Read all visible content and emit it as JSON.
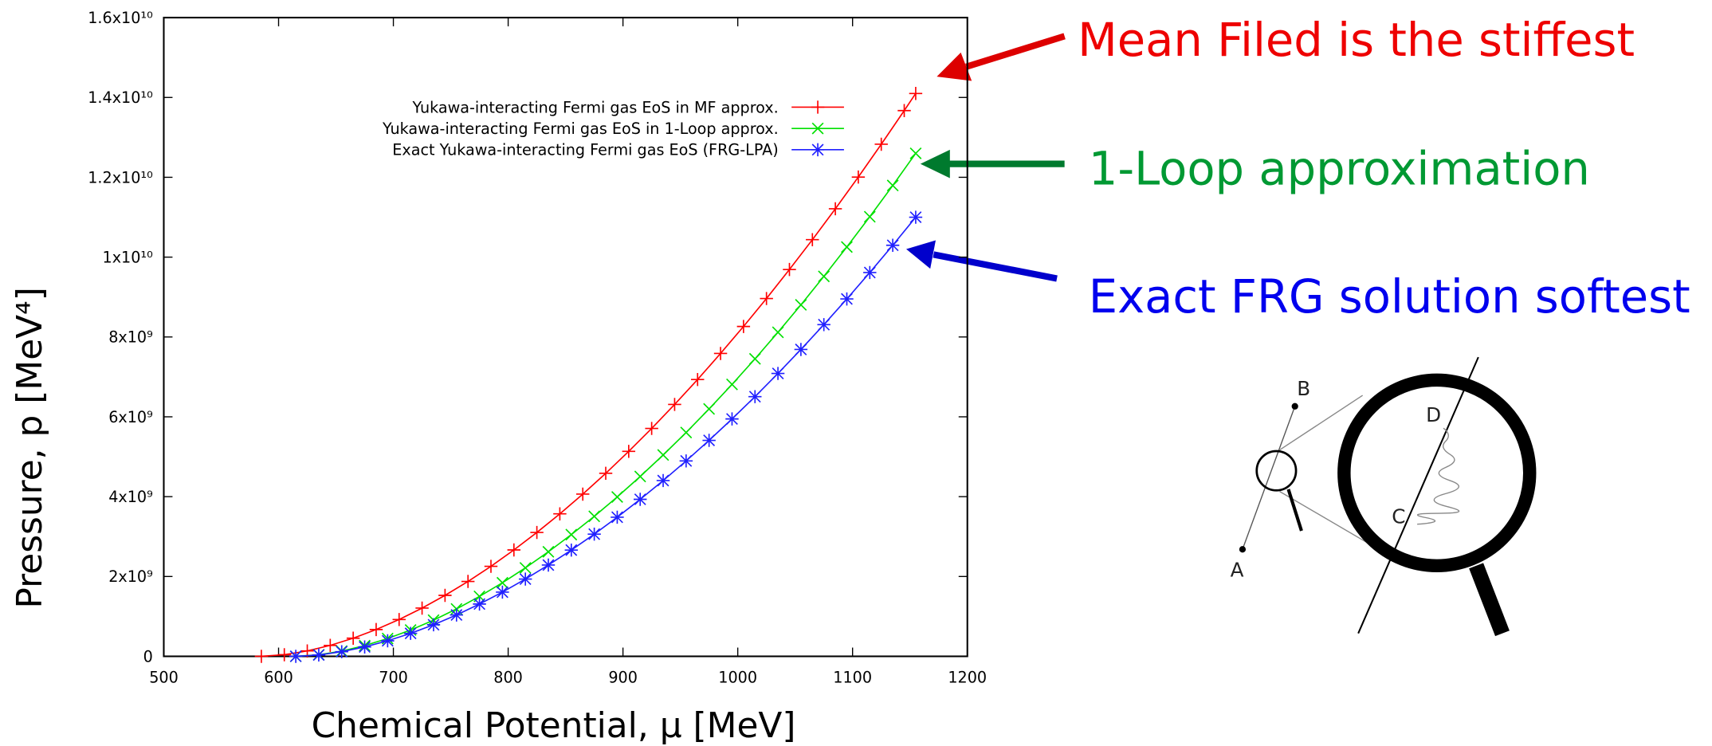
{
  "chart_data": {
    "type": "line",
    "x_label": "Chemical Potential, μ [MeV]",
    "y_label": "Pressure, p [MeV⁴]",
    "xlim": [
      500,
      1200
    ],
    "xticks": [
      500,
      600,
      700,
      800,
      900,
      1000,
      1100,
      1200
    ],
    "ylim": [
      0,
      16000000000.0
    ],
    "yticks": [
      0,
      {
        "value": 2000000000.0,
        "label": "2x10⁹"
      },
      {
        "value": 4000000000.0,
        "label": "4x10⁹"
      },
      {
        "value": 6000000000.0,
        "label": "6x10⁹"
      },
      {
        "value": 8000000000.0,
        "label": "8x10⁹"
      },
      {
        "value": 10000000000.0,
        "label": "1x10¹⁰"
      },
      {
        "value": 12000000000.0,
        "label": "1.2x10¹⁰"
      },
      {
        "value": 14000000000.0,
        "label": "1.4x10¹⁰"
      },
      {
        "value": 16000000000.0,
        "label": "1.6x10¹⁰"
      }
    ],
    "legend": "top-right",
    "series": [
      {
        "name": "Yukawa-interacting Fermi gas EoS in MF approx.",
        "color": "#ff0000",
        "marker": "plus",
        "x": [
          585,
          605,
          625,
          645,
          665,
          685,
          705,
          725,
          745,
          765,
          785,
          805,
          825,
          845,
          865,
          885,
          905,
          925,
          945,
          965,
          985,
          1005,
          1025,
          1045,
          1065,
          1085,
          1105,
          1125,
          1145,
          1155
        ],
        "values": [
          0,
          40000000.0,
          135000000.0,
          274000000.0,
          454000000.0,
          671000000.0,
          922000000.0,
          1208000000.0,
          1527000000.0,
          1876000000.0,
          2254000000.0,
          2665000000.0,
          3103000000.0,
          3569000000.0,
          4063000000.0,
          4585000000.0,
          5134000000.0,
          5709000000.0,
          6310000000.0,
          6934000000.0,
          7587000000.0,
          8263000000.0,
          8963000000.0,
          9690000000.0,
          10437000000.0,
          11211000000.0,
          12006000000.0,
          12828000000.0,
          13671000000.0,
          14100000000.0
        ]
      },
      {
        "name": "Yukawa-interacting Fermi gas EoS in 1-Loop approx.",
        "color": "#00e000",
        "marker": "cross",
        "x": [
          615,
          635,
          655,
          675,
          695,
          715,
          735,
          755,
          775,
          795,
          815,
          835,
          855,
          875,
          895,
          915,
          935,
          955,
          975,
          995,
          1015,
          1035,
          1055,
          1075,
          1095,
          1115,
          1135,
          1155
        ],
        "values": [
          0,
          39000000.0,
          132000000.0,
          269000000.0,
          446000000.0,
          659000000.0,
          906000000.0,
          1187000000.0,
          1501000000.0,
          1842000000.0,
          2216000000.0,
          2618000000.0,
          3049000000.0,
          3507000000.0,
          3992000000.0,
          4505000000.0,
          5044000000.0,
          5607000000.0,
          6197000000.0,
          6812000000.0,
          7452000000.0,
          8117000000.0,
          8805000000.0,
          9518000000.0,
          10254000000.0,
          11012000000.0,
          11795000000.0,
          12600000000.0
        ]
      },
      {
        "name": "Exact Yukawa-interacting Fermi gas EoS (FRG-LPA)",
        "color": "#2020ff",
        "marker": "star",
        "x": [
          615,
          635,
          655,
          675,
          695,
          715,
          735,
          755,
          775,
          795,
          815,
          835,
          855,
          875,
          895,
          915,
          935,
          955,
          975,
          995,
          1015,
          1035,
          1055,
          1075,
          1095,
          1115,
          1135,
          1155
        ],
        "values": [
          0,
          34000000.0,
          116000000.0,
          235000000.0,
          389000000.0,
          575000000.0,
          791000000.0,
          1036000000.0,
          1310000000.0,
          1608000000.0,
          1935000000.0,
          2286000000.0,
          2662000000.0,
          3061000000.0,
          3485000000.0,
          3933000000.0,
          4403000000.0,
          4895000000.0,
          5410000000.0,
          5947000000.0,
          6505000000.0,
          7086000000.0,
          7687000000.0,
          8309000000.0,
          8952000000.0,
          9614000000.0,
          10297000000.0,
          11000000000.0
        ]
      }
    ],
    "annotations": [
      {
        "text": "Mean Filed is the stiffest",
        "color": "#ee0000"
      },
      {
        "text": "1-Loop approximation",
        "color": "#009933"
      },
      {
        "text": "Exact FRG solution softest",
        "color": "#0000ee"
      }
    ]
  },
  "illustration": {
    "labels": [
      "A",
      "B",
      "C",
      "D"
    ]
  }
}
